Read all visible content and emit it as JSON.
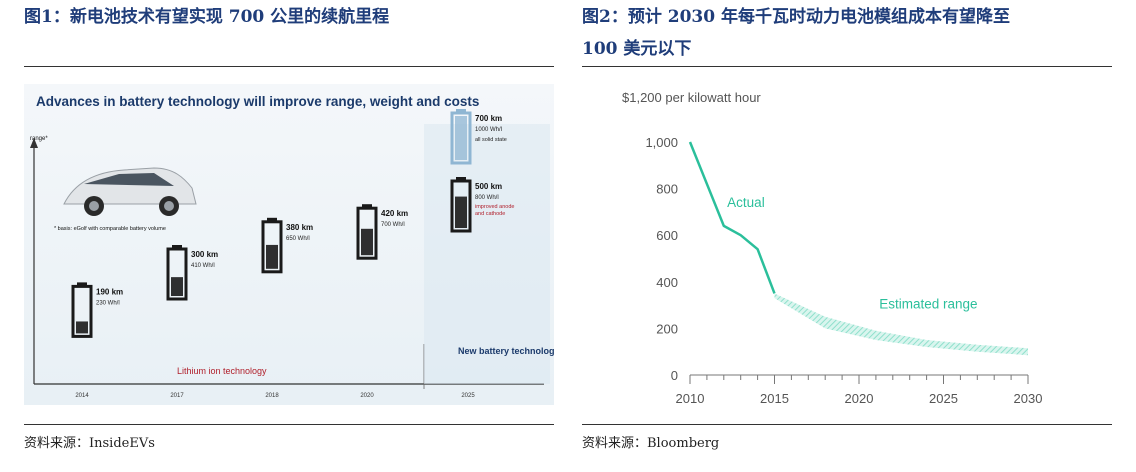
{
  "left_figure": {
    "caption": "图1：新电池技术有望实现 700 公里的续航里程",
    "source": "资料来源：InsideEVs",
    "chart_data": {
      "type": "bar",
      "title": "Advances in battery technology will improve range, weight and costs",
      "ylabel": "range*",
      "footnote": "* basis: eGolf with comparable battery volume",
      "categories": [
        "2014",
        "2017",
        "2018",
        "2020",
        "2025",
        "2025"
      ],
      "points": [
        {
          "year": "2014",
          "range_km": 190,
          "density": "230 Wh/l",
          "range_label": "190 km"
        },
        {
          "year": "2017",
          "range_km": 300,
          "density": "410 Wh/l",
          "range_label": "300 km"
        },
        {
          "year": "2018",
          "range_km": 380,
          "density": "650 Wh/l",
          "range_label": "380 km"
        },
        {
          "year": "2020",
          "range_km": 420,
          "density": "700 Wh/l",
          "range_label": "420 km"
        },
        {
          "year": "2025",
          "range_km": 500,
          "density": "800 Wh/l",
          "range_label": "500 km",
          "note": "improved anode and cathode"
        },
        {
          "year": "2025",
          "range_km": 700,
          "density": "1000 Wh/l",
          "range_label": "700 km",
          "note": "all solid state"
        }
      ],
      "lithium_label": "Lithium ion technology",
      "new_label": "New battery technologies",
      "colors": {
        "battery": "#1a1a1a",
        "solid_state": "#8fb6d3",
        "accent_text": "#b0202c",
        "new_tech_text": "#1b3a6b"
      }
    }
  },
  "right_figure": {
    "caption_line1": "图2：预计 2030 年每千瓦时动力电池模组成本有望降至",
    "caption_line2": "100 美元以下",
    "source": "资料来源：Bloomberg",
    "chart_data": {
      "type": "line",
      "ylabel": "$1,200 per kilowatt hour",
      "yticks": [
        "0",
        "200",
        "400",
        "600",
        "800",
        "1,000"
      ],
      "ylim": [
        0,
        1100
      ],
      "xticks": [
        "2010",
        "2015",
        "2020",
        "2025",
        "2030"
      ],
      "xlim": [
        2010,
        2030
      ],
      "series": [
        {
          "name": "Actual",
          "x": [
            2010,
            2011,
            2012,
            2013,
            2014,
            2015
          ],
          "values": [
            1000,
            820,
            640,
            600,
            540,
            350
          ]
        }
      ],
      "band": {
        "name": "Estimated range",
        "x": [
          2015,
          2018,
          2021,
          2024,
          2027,
          2030
        ],
        "upper": [
          350,
          250,
          190,
          150,
          130,
          115
        ],
        "lower": [
          330,
          200,
          150,
          120,
          100,
          85
        ]
      },
      "colors": {
        "actual": "#2bbf9b",
        "band": "#8fe0cc",
        "label": "#2bbf9b"
      }
    }
  }
}
